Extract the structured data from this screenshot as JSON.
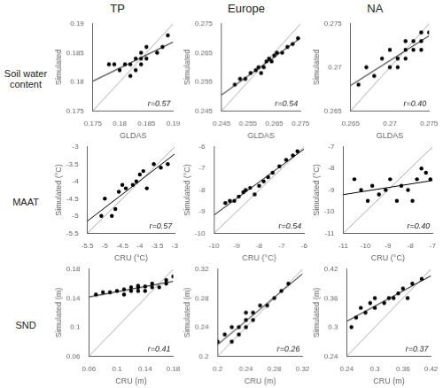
{
  "chart_data": [
    {
      "type": "scatter",
      "title": "TP",
      "subtitle": "Soil water\ncontent",
      "xlabel": "GLDAS",
      "ylabel": "Simulated",
      "grid": false,
      "xlim": [
        0.175,
        0.19
      ],
      "ylim": [
        0.175,
        0.19
      ],
      "xticks": [
        0.175,
        0.18,
        0.185,
        0.19
      ],
      "yticks": [
        0.175,
        0.18,
        0.185,
        0.19
      ],
      "annotations": [
        {
          "text": "r=0.57"
        }
      ],
      "series": [
        {
          "type": "line",
          "color": "#aaaaaa",
          "line_style": "solid",
          "x": [
            0.175,
            0.19
          ],
          "values": [
            0.175,
            0.19
          ]
        },
        {
          "type": "line",
          "color": "#000000",
          "line_style": "solid",
          "x": [
            0.175,
            0.19
          ],
          "values": [
            0.180108,
            0.186854
          ]
        },
        {
          "type": "scatter",
          "color": "#000000",
          "marker": "circle",
          "x": [
            0.178,
            0.179,
            0.18,
            0.181,
            0.182,
            0.182,
            0.183,
            0.183,
            0.184,
            0.184,
            0.184,
            0.185,
            0.185,
            0.187,
            0.188,
            0.189
          ],
          "values": [
            0.183,
            0.183,
            0.182,
            0.183,
            0.181,
            0.183,
            0.182,
            0.184,
            0.183,
            0.185,
            0.184,
            0.184,
            0.186,
            0.185,
            0.186,
            0.188
          ]
        }
      ]
    },
    {
      "type": "scatter",
      "title": "Europe",
      "xlabel": "GLDAS",
      "ylabel": "Simulated",
      "grid": false,
      "xlim": [
        0.245,
        0.275
      ],
      "ylim": [
        0.245,
        0.275
      ],
      "xticks": [
        0.245,
        0.255,
        0.265,
        0.275
      ],
      "yticks": [
        0.245,
        0.255,
        0.265,
        0.275
      ],
      "annotations": [
        {
          "text": "r=0.54"
        }
      ],
      "series": [
        {
          "type": "line",
          "color": "#aaaaaa",
          "line_style": "solid",
          "x": [
            0.245,
            0.275
          ],
          "values": [
            0.245,
            0.275
          ]
        },
        {
          "type": "line",
          "color": "#000000",
          "line_style": "solid",
          "x": [
            0.245,
            0.275
          ],
          "values": [
            0.250475,
            0.270087
          ]
        },
        {
          "type": "scatter",
          "color": "#000000",
          "marker": "circle",
          "x": [
            0.25,
            0.252,
            0.254,
            0.256,
            0.258,
            0.259,
            0.26,
            0.261,
            0.262,
            0.263,
            0.264,
            0.265,
            0.266,
            0.268,
            0.27,
            0.272,
            0.274
          ],
          "values": [
            0.254,
            0.256,
            0.256,
            0.258,
            0.259,
            0.26,
            0.258,
            0.26,
            0.262,
            0.263,
            0.262,
            0.264,
            0.265,
            0.265,
            0.267,
            0.268,
            0.27
          ]
        }
      ]
    },
    {
      "type": "scatter",
      "title": "NA",
      "xlabel": "GLDAS",
      "ylabel": "Simulated",
      "grid": false,
      "xlim": [
        0.265,
        0.275
      ],
      "ylim": [
        0.265,
        0.275
      ],
      "xticks": [
        0.265,
        0.27,
        0.275
      ],
      "yticks": [
        0.265,
        0.27,
        0.275
      ],
      "annotations": [
        {
          "text": "r=0.40"
        }
      ],
      "series": [
        {
          "type": "line",
          "color": "#aaaaaa",
          "line_style": "solid",
          "x": [
            0.265,
            0.275
          ],
          "values": [
            0.265,
            0.275
          ]
        },
        {
          "type": "line",
          "color": "#000000",
          "line_style": "solid",
          "x": [
            0.265,
            0.275
          ],
          "values": [
            0.267919,
            0.273615
          ]
        },
        {
          "type": "scatter",
          "color": "#000000",
          "marker": "circle",
          "x": [
            0.266,
            0.267,
            0.268,
            0.269,
            0.27,
            0.27,
            0.271,
            0.271,
            0.272,
            0.272,
            0.272,
            0.273,
            0.273,
            0.274,
            0.274,
            0.274,
            0.275
          ],
          "values": [
            0.268,
            0.27,
            0.269,
            0.271,
            0.27,
            0.272,
            0.27,
            0.271,
            0.271,
            0.272,
            0.273,
            0.272,
            0.273,
            0.272,
            0.273,
            0.274,
            0.274
          ]
        }
      ]
    },
    {
      "type": "scatter",
      "subtitle": "MAAT",
      "xlabel": "CRU (°C)",
      "ylabel": "Simulated (°C)",
      "grid": false,
      "xlim": [
        -5.5,
        -3.0
      ],
      "ylim": [
        -5.5,
        -3.0
      ],
      "xticks": [
        -5.5,
        -5,
        -4.5,
        -4,
        -3.5,
        -3
      ],
      "yticks": [
        -5.5,
        -5,
        -4.5,
        -4,
        -3.5,
        -3
      ],
      "annotations": [
        {
          "text": "r=0.57"
        }
      ],
      "series": [
        {
          "type": "line",
          "color": "#aaaaaa",
          "line_style": "solid",
          "x": [
            -5.5,
            -3.0
          ],
          "values": [
            -5.5,
            -3.0
          ]
        },
        {
          "type": "line",
          "color": "#000000",
          "line_style": "solid",
          "x": [
            -5.5,
            -3.0
          ],
          "values": [
            -5.14944,
            -3.203919
          ]
        },
        {
          "type": "scatter",
          "color": "#000000",
          "marker": "circle",
          "x": [
            -5.1,
            -5.0,
            -4.8,
            -4.7,
            -4.6,
            -4.5,
            -4.4,
            -4.2,
            -4.1,
            -4.0,
            -3.9,
            -3.8,
            -3.6,
            -3.4,
            -3.2
          ],
          "values": [
            -5.0,
            -4.5,
            -5.0,
            -4.8,
            -4.3,
            -4.1,
            -4.2,
            -4.1,
            -4.0,
            -3.8,
            -3.7,
            -4.2,
            -3.5,
            -3.6,
            -3.5
          ]
        }
      ]
    },
    {
      "type": "scatter",
      "xlabel": "CRU (°C)",
      "ylabel": "Simulated (°C)",
      "grid": false,
      "xlim": [
        -10.0,
        -6.0
      ],
      "ylim": [
        -10.0,
        -6.0
      ],
      "xticks": [
        -10,
        -9,
        -8,
        -7,
        -6
      ],
      "yticks": [
        -10,
        -9,
        -8,
        -7,
        -6
      ],
      "annotations": [
        {
          "text": "r=0.54"
        }
      ],
      "series": [
        {
          "type": "line",
          "color": "#aaaaaa",
          "line_style": "solid",
          "x": [
            -10.0,
            -6.0
          ],
          "values": [
            -10.0,
            -6.0
          ]
        },
        {
          "type": "line",
          "color": "#000000",
          "line_style": "solid",
          "x": [
            -10.0,
            -6.0
          ],
          "values": [
            -9.15794,
            -6.097935
          ]
        },
        {
          "type": "scatter",
          "color": "#000000",
          "marker": "circle",
          "x": [
            -9.5,
            -9.3,
            -9.1,
            -8.9,
            -8.7,
            -8.6,
            -8.4,
            -8.2,
            -8.0,
            -7.8,
            -7.6,
            -7.4,
            -7.1,
            -6.8,
            -6.5,
            -6.3
          ],
          "values": [
            -8.6,
            -8.5,
            -8.5,
            -8.3,
            -8.1,
            -8.0,
            -7.9,
            -8.2,
            -7.8,
            -7.6,
            -7.4,
            -7.2,
            -6.9,
            -6.6,
            -6.4,
            -6.2
          ]
        }
      ]
    },
    {
      "type": "scatter",
      "xlabel": "CRU (°C)",
      "ylabel": "Simulated (°C)",
      "grid": false,
      "xlim": [
        -11.0,
        -7.0
      ],
      "ylim": [
        -11.0,
        -7.0
      ],
      "xticks": [
        -11,
        -10,
        -9,
        -8,
        -7
      ],
      "yticks": [
        -11,
        -10,
        -9,
        -8,
        -7
      ],
      "annotations": [
        {
          "text": "r=0.40"
        }
      ],
      "series": [
        {
          "type": "line",
          "color": "#aaaaaa",
          "line_style": "solid",
          "x": [
            -11.0,
            -7.0
          ],
          "values": [
            -11.0,
            -7.0
          ]
        },
        {
          "type": "line",
          "color": "#000000",
          "line_style": "solid",
          "x": [
            -11.0,
            -7.0
          ],
          "values": [
            -9.21294,
            -8.55656
          ]
        },
        {
          "type": "scatter",
          "color": "#000000",
          "marker": "circle",
          "x": [
            -10.5,
            -10.2,
            -9.9,
            -9.7,
            -9.4,
            -9.1,
            -8.9,
            -8.6,
            -8.4,
            -8.1,
            -7.9,
            -7.7,
            -7.5,
            -7.3,
            -7.1
          ],
          "values": [
            -8.5,
            -9.0,
            -9.5,
            -8.8,
            -9.2,
            -9.0,
            -8.5,
            -9.5,
            -8.8,
            -9.0,
            -9.5,
            -8.5,
            -8.0,
            -8.2,
            -8.5
          ]
        }
      ]
    },
    {
      "type": "scatter",
      "subtitle": "SND",
      "xlabel": "CRU (m)",
      "ylabel": "Simulated (m)",
      "grid": false,
      "xlim": [
        0.06,
        0.18
      ],
      "ylim": [
        0.06,
        0.18
      ],
      "xticks": [
        0.06,
        0.1,
        0.14,
        0.18
      ],
      "yticks": [
        0.06,
        0.1,
        0.14,
        0.18
      ],
      "annotations": [
        {
          "text": "r=0.41"
        }
      ],
      "series": [
        {
          "type": "line",
          "color": "#aaaaaa",
          "line_style": "solid",
          "x": [
            0.06,
            0.18
          ],
          "values": [
            0.06,
            0.18
          ]
        },
        {
          "type": "line",
          "color": "#000000",
          "line_style": "solid",
          "x": [
            0.06,
            0.18
          ],
          "values": [
            0.141638,
            0.163153
          ]
        },
        {
          "type": "scatter",
          "color": "#000000",
          "marker": "circle",
          "x": [
            0.07,
            0.08,
            0.09,
            0.1,
            0.11,
            0.11,
            0.12,
            0.12,
            0.13,
            0.13,
            0.13,
            0.14,
            0.14,
            0.15,
            0.15,
            0.16,
            0.17,
            0.17,
            0.18
          ],
          "values": [
            0.145,
            0.148,
            0.148,
            0.15,
            0.145,
            0.152,
            0.15,
            0.155,
            0.15,
            0.155,
            0.157,
            0.15,
            0.156,
            0.155,
            0.16,
            0.155,
            0.16,
            0.165,
            0.17
          ]
        }
      ]
    },
    {
      "type": "scatter",
      "xlabel": "CRU (m)",
      "ylabel": "Simulated (m)",
      "grid": false,
      "xlim": [
        0.2,
        0.32
      ],
      "ylim": [
        0.2,
        0.32
      ],
      "xticks": [
        0.2,
        0.24,
        0.28,
        0.32
      ],
      "yticks": [
        0.2,
        0.24,
        0.28,
        0.32
      ],
      "annotations": [
        {
          "text": "r=0.26"
        }
      ],
      "series": [
        {
          "type": "line",
          "color": "#aaaaaa",
          "line_style": "solid",
          "x": [
            0.2,
            0.32
          ],
          "values": [
            0.2,
            0.32
          ]
        },
        {
          "type": "line",
          "color": "#000000",
          "line_style": "solid",
          "x": [
            0.2,
            0.32
          ],
          "values": [
            0.216012,
            0.313624
          ]
        },
        {
          "type": "scatter",
          "color": "#000000",
          "marker": "circle",
          "x": [
            0.2,
            0.21,
            0.22,
            0.22,
            0.23,
            0.23,
            0.24,
            0.24,
            0.24,
            0.25,
            0.25,
            0.26,
            0.27,
            0.28,
            0.29,
            0.3
          ],
          "values": [
            0.22,
            0.23,
            0.22,
            0.24,
            0.23,
            0.24,
            0.24,
            0.25,
            0.26,
            0.25,
            0.26,
            0.27,
            0.27,
            0.28,
            0.29,
            0.3
          ]
        }
      ]
    },
    {
      "type": "scatter",
      "xlabel": "CRU (m)",
      "ylabel": "Simulated (m)",
      "grid": false,
      "xlim": [
        0.24,
        0.42
      ],
      "ylim": [
        0.24,
        0.42
      ],
      "xticks": [
        0.24,
        0.3,
        0.36,
        0.42
      ],
      "yticks": [
        0.24,
        0.3,
        0.36,
        0.42
      ],
      "annotations": [
        {
          "text": "r=0.37"
        }
      ],
      "series": [
        {
          "type": "line",
          "color": "#aaaaaa",
          "line_style": "solid",
          "x": [
            0.24,
            0.42
          ],
          "values": [
            0.24,
            0.42
          ]
        },
        {
          "type": "line",
          "color": "#000000",
          "line_style": "solid",
          "x": [
            0.24,
            0.42
          ],
          "values": [
            0.312121,
            0.406349
          ]
        },
        {
          "type": "scatter",
          "color": "#000000",
          "marker": "circle",
          "x": [
            0.25,
            0.26,
            0.27,
            0.28,
            0.29,
            0.3,
            0.3,
            0.32,
            0.33,
            0.34,
            0.35,
            0.36,
            0.37,
            0.38,
            0.4
          ],
          "values": [
            0.3,
            0.32,
            0.34,
            0.33,
            0.35,
            0.34,
            0.36,
            0.35,
            0.36,
            0.36,
            0.37,
            0.38,
            0.36,
            0.39,
            0.4
          ]
        }
      ]
    }
  ]
}
